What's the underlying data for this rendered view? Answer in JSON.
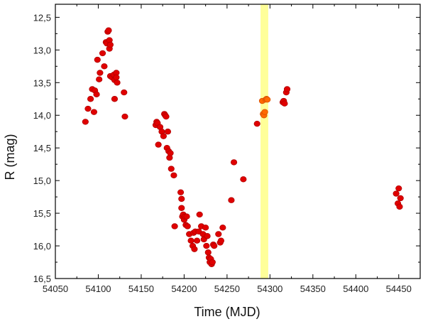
{
  "chart_data": {
    "type": "scatter",
    "xlabel": "Time (MJD)",
    "ylabel": "R (mag)",
    "xlim": [
      54050,
      54475
    ],
    "ylim": [
      16.5,
      12.3
    ],
    "y_axis_inverted": true,
    "x_ticks": [
      54050,
      54100,
      54150,
      54200,
      54250,
      54300,
      54350,
      54400,
      54450
    ],
    "x_tick_labels": [
      "54050",
      "54100",
      "54150",
      "54200",
      "54250",
      "54300",
      "54350",
      "54400",
      "54450"
    ],
    "y_ticks": [
      12.5,
      13.0,
      13.5,
      14.0,
      14.5,
      15.0,
      15.5,
      16.0,
      16.5
    ],
    "y_tick_labels": [
      "12,5",
      "13,0",
      "13,5",
      "14,0",
      "14,5",
      "15,0",
      "15,5",
      "16,0",
      "16,5"
    ],
    "grid": false,
    "highlight_band": {
      "x_start": 54289,
      "x_end": 54298,
      "color": "#ffff99"
    },
    "series": [
      {
        "color": "#e00000",
        "points": [
          {
            "x": 54085,
            "y": 14.1
          },
          {
            "x": 54088,
            "y": 13.9
          },
          {
            "x": 54091,
            "y": 13.75
          },
          {
            "x": 54093,
            "y": 13.6
          },
          {
            "x": 54095,
            "y": 13.95
          },
          {
            "x": 54096,
            "y": 13.62
          },
          {
            "x": 54098,
            "y": 13.68
          },
          {
            "x": 54099,
            "y": 13.15
          },
          {
            "x": 54101,
            "y": 13.45
          },
          {
            "x": 54102,
            "y": 13.35
          },
          {
            "x": 54105,
            "y": 13.05
          },
          {
            "x": 54107,
            "y": 13.25
          },
          {
            "x": 54109,
            "y": 12.88
          },
          {
            "x": 54110,
            "y": 12.9
          },
          {
            "x": 54111,
            "y": 12.72
          },
          {
            "x": 54112,
            "y": 12.7
          },
          {
            "x": 54113,
            "y": 12.85
          },
          {
            "x": 54113,
            "y": 12.98
          },
          {
            "x": 54114,
            "y": 12.92
          },
          {
            "x": 54114,
            "y": 13.4
          },
          {
            "x": 54116,
            "y": 13.42
          },
          {
            "x": 54118,
            "y": 13.38
          },
          {
            "x": 54119,
            "y": 13.46
          },
          {
            "x": 54119,
            "y": 13.75
          },
          {
            "x": 54121,
            "y": 13.35
          },
          {
            "x": 54121,
            "y": 13.42
          },
          {
            "x": 54122,
            "y": 13.5
          },
          {
            "x": 54130,
            "y": 13.65
          },
          {
            "x": 54131,
            "y": 14.02
          },
          {
            "x": 54167,
            "y": 14.15
          },
          {
            "x": 54168,
            "y": 14.1
          },
          {
            "x": 54169,
            "y": 14.12
          },
          {
            "x": 54170,
            "y": 14.45
          },
          {
            "x": 54172,
            "y": 14.18
          },
          {
            "x": 54174,
            "y": 14.25
          },
          {
            "x": 54176,
            "y": 14.32
          },
          {
            "x": 54177,
            "y": 13.98
          },
          {
            "x": 54178,
            "y": 14.0
          },
          {
            "x": 54179,
            "y": 14.02
          },
          {
            "x": 54180,
            "y": 14.5
          },
          {
            "x": 54181,
            "y": 14.25
          },
          {
            "x": 54182,
            "y": 14.55
          },
          {
            "x": 54183,
            "y": 14.65
          },
          {
            "x": 54184,
            "y": 14.58
          },
          {
            "x": 54185,
            "y": 14.82
          },
          {
            "x": 54188,
            "y": 14.92
          },
          {
            "x": 54189,
            "y": 15.7
          },
          {
            "x": 54196,
            "y": 15.18
          },
          {
            "x": 54197,
            "y": 15.28
          },
          {
            "x": 54197,
            "y": 15.42
          },
          {
            "x": 54198,
            "y": 15.55
          },
          {
            "x": 54199,
            "y": 15.52
          },
          {
            "x": 54200,
            "y": 15.6
          },
          {
            "x": 54201,
            "y": 15.55
          },
          {
            "x": 54202,
            "y": 15.68
          },
          {
            "x": 54203,
            "y": 15.55
          },
          {
            "x": 54204,
            "y": 15.7
          },
          {
            "x": 54206,
            "y": 15.82
          },
          {
            "x": 54208,
            "y": 15.92
          },
          {
            "x": 54210,
            "y": 16.0
          },
          {
            "x": 54211,
            "y": 15.8
          },
          {
            "x": 54212,
            "y": 16.05
          },
          {
            "x": 54213,
            "y": 15.78
          },
          {
            "x": 54215,
            "y": 15.92
          },
          {
            "x": 54217,
            "y": 15.78
          },
          {
            "x": 54218,
            "y": 15.52
          },
          {
            "x": 54220,
            "y": 15.7
          },
          {
            "x": 54222,
            "y": 15.82
          },
          {
            "x": 54223,
            "y": 15.9
          },
          {
            "x": 54225,
            "y": 15.72
          },
          {
            "x": 54226,
            "y": 16.0
          },
          {
            "x": 54227,
            "y": 15.85
          },
          {
            "x": 54228,
            "y": 16.1
          },
          {
            "x": 54229,
            "y": 16.18
          },
          {
            "x": 54230,
            "y": 16.25
          },
          {
            "x": 54231,
            "y": 16.2
          },
          {
            "x": 54232,
            "y": 16.28
          },
          {
            "x": 54233,
            "y": 16.25
          },
          {
            "x": 54234,
            "y": 15.98
          },
          {
            "x": 54235,
            "y": 16.0
          },
          {
            "x": 54240,
            "y": 15.82
          },
          {
            "x": 54242,
            "y": 15.95
          },
          {
            "x": 54243,
            "y": 15.92
          },
          {
            "x": 54245,
            "y": 15.72
          },
          {
            "x": 54255,
            "y": 15.3
          },
          {
            "x": 54258,
            "y": 14.72
          },
          {
            "x": 54269,
            "y": 14.98
          },
          {
            "x": 54285,
            "y": 14.13
          },
          {
            "x": 54315,
            "y": 13.8
          },
          {
            "x": 54316,
            "y": 13.78
          },
          {
            "x": 54317,
            "y": 13.82
          },
          {
            "x": 54319,
            "y": 13.65
          },
          {
            "x": 54320,
            "y": 13.6
          },
          {
            "x": 54447,
            "y": 15.2
          },
          {
            "x": 54449,
            "y": 15.35
          },
          {
            "x": 54450,
            "y": 15.12
          },
          {
            "x": 54451,
            "y": 15.4
          },
          {
            "x": 54452,
            "y": 15.27
          }
        ]
      },
      {
        "color": "#ff6a00",
        "points": [
          {
            "x": 54291,
            "y": 13.78
          },
          {
            "x": 54292,
            "y": 13.98
          },
          {
            "x": 54293,
            "y": 14.0
          },
          {
            "x": 54294,
            "y": 13.95
          },
          {
            "x": 54295,
            "y": 13.76
          },
          {
            "x": 54296,
            "y": 13.75
          },
          {
            "x": 54297,
            "y": 13.76
          }
        ]
      }
    ]
  }
}
